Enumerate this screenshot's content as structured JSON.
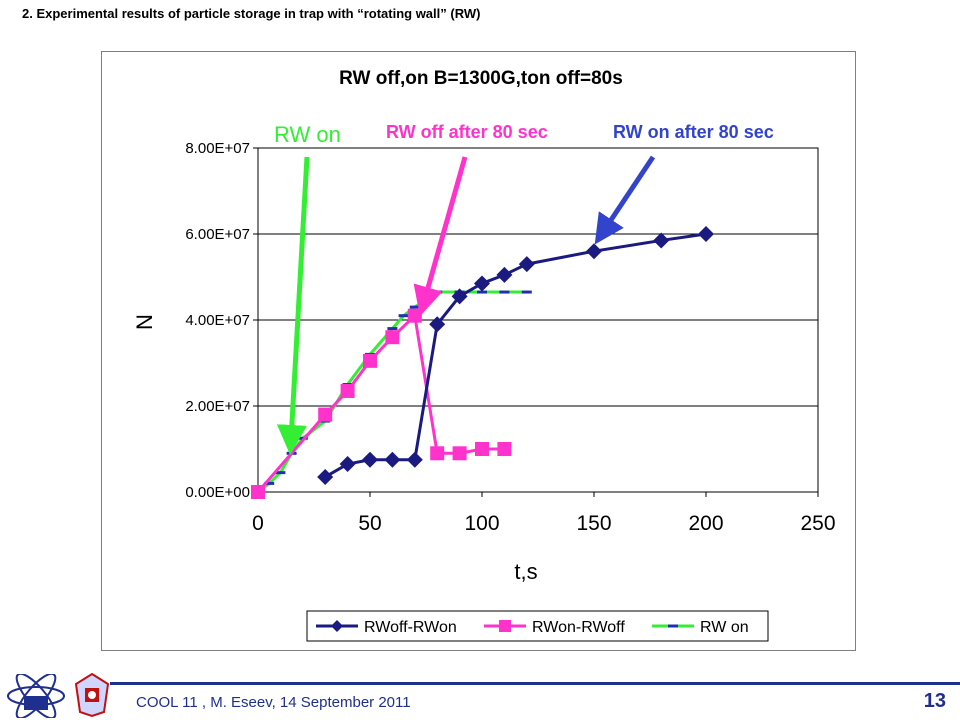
{
  "slide": {
    "title": "2. Experimental results of particle storage in trap with “rotating wall” (RW)",
    "footer": "COOL 11 , M. Eseev, 14 September 2011",
    "page_number": "13"
  },
  "colors": {
    "rwoff_rwon": "#1a1a80",
    "rwon_rwoff": "#ff33cc",
    "rw_on": "#33ee33",
    "rw_on_dash": "#2030b0",
    "arrow_green": "#33ee33",
    "arrow_magenta": "#ff33cc",
    "arrow_blue": "#3344cc",
    "footer": "#1f2f8f"
  },
  "chart_data": {
    "type": "line",
    "title": "RW off,on B=1300G,ton off=80s",
    "xlabel": "t,s",
    "ylabel": "N",
    "xlim": [
      0,
      250
    ],
    "ylim": [
      0,
      80000000
    ],
    "x_ticks": [
      "0",
      "50",
      "100",
      "150",
      "200",
      "250"
    ],
    "y_ticks": [
      "0.00E+00",
      "2.00E+07",
      "4.00E+07",
      "6.00E+07",
      "8.00E+07"
    ],
    "grid": "horizontal",
    "legend_position": "bottom",
    "series": [
      {
        "name": "RWoff-RWon",
        "marker": "diamond",
        "points": [
          [
            30,
            3500000
          ],
          [
            40,
            6500000
          ],
          [
            50,
            7500000
          ],
          [
            60,
            7500000
          ],
          [
            70,
            7500000
          ],
          [
            80,
            39000000
          ],
          [
            90,
            45500000
          ],
          [
            100,
            48500000
          ],
          [
            110,
            50500000
          ],
          [
            120,
            53000000
          ],
          [
            150,
            56000000
          ],
          [
            180,
            58500000
          ],
          [
            200,
            60000000
          ]
        ]
      },
      {
        "name": "RWon-RWoff",
        "marker": "square",
        "points": [
          [
            0,
            0
          ],
          [
            30,
            18000000
          ],
          [
            40,
            23500000
          ],
          [
            50,
            30500000
          ],
          [
            60,
            36000000
          ],
          [
            70,
            41000000
          ],
          [
            80,
            9000000
          ],
          [
            90,
            9000000
          ],
          [
            100,
            10000000
          ],
          [
            110,
            10000000
          ]
        ]
      },
      {
        "name": "RW on",
        "marker": "dash",
        "points": [
          [
            0,
            0
          ],
          [
            5,
            2000000
          ],
          [
            10,
            4500000
          ],
          [
            15,
            9000000
          ],
          [
            20,
            12500000
          ],
          [
            30,
            16500000
          ],
          [
            40,
            25000000
          ],
          [
            50,
            32000000
          ],
          [
            60,
            38000000
          ],
          [
            65,
            41000000
          ],
          [
            70,
            43000000
          ],
          [
            80,
            46500000
          ],
          [
            90,
            46500000
          ],
          [
            100,
            46500000
          ],
          [
            110,
            46500000
          ],
          [
            120,
            46500000
          ]
        ]
      }
    ],
    "annotations": [
      {
        "text": "RW on",
        "color": "#33ee33"
      },
      {
        "text": "RW off after 80 sec",
        "color": "#ff33cc"
      },
      {
        "text": "RW on after 80 sec",
        "color": "#3344cc"
      }
    ]
  }
}
